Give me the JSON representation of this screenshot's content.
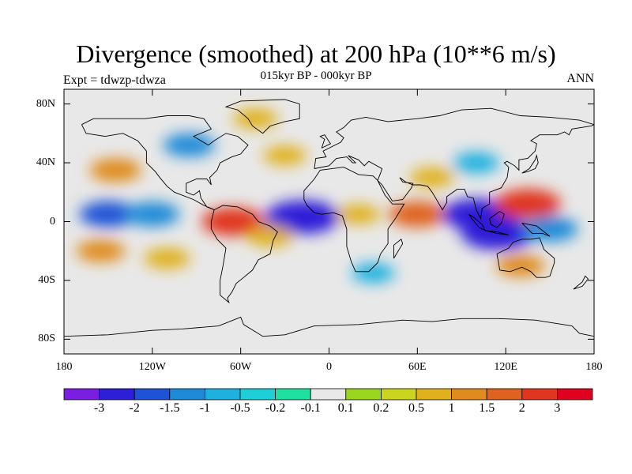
{
  "header": {
    "title": "Divergence (smoothed) at 200 hPa (10**6 m/s)",
    "subtitle": "015kyr BP - 000kyr BP",
    "left_label": "Expt = tdwzp-tdwza",
    "right_label": "ANN"
  },
  "axes": {
    "y_ticks": [
      "80N",
      "40N",
      "0",
      "40S",
      "80S"
    ],
    "x_ticks": [
      "180",
      "120W",
      "60W",
      "0",
      "60E",
      "120E",
      "180"
    ]
  },
  "colorbar": {
    "labels": [
      "-3",
      "-2",
      "-1.5",
      "-1",
      "-0.5",
      "-0.2",
      "-0.1",
      "0.1",
      "0.2",
      "0.5",
      "1",
      "1.5",
      "2",
      "3"
    ],
    "colors": [
      "#7a1fe0",
      "#2d1fd8",
      "#1f52d6",
      "#1f8ad8",
      "#1fb0e0",
      "#1fcfd8",
      "#1fe0a0",
      "#e8e8e8",
      "#9ad61f",
      "#cdd41f",
      "#e0b01f",
      "#e08a1f",
      "#e0621f",
      "#e0361f",
      "#e0001f"
    ]
  },
  "chart_data": {
    "type": "heatmap",
    "title": "Divergence (smoothed) at 200 hPa (10**6 m/s)",
    "subtitle": "015kyr BP - 000kyr BP",
    "xlim": [
      -180,
      180
    ],
    "ylim": [
      -90,
      90
    ],
    "levels": [
      -3,
      -2,
      -1.5,
      -1,
      -0.5,
      -0.2,
      -0.1,
      0.1,
      0.2,
      0.5,
      1,
      1.5,
      2,
      3
    ],
    "features": [
      {
        "lon": -145,
        "lat": 35,
        "value": 1.2
      },
      {
        "lon": -150,
        "lat": 5,
        "value": -1.6
      },
      {
        "lon": -120,
        "lat": 5,
        "value": -1.4
      },
      {
        "lon": -95,
        "lat": 52,
        "value": -1.2
      },
      {
        "lon": -65,
        "lat": 0,
        "value": 2.0
      },
      {
        "lon": -18,
        "lat": 3,
        "value": -2.8
      },
      {
        "lon": -40,
        "lat": -10,
        "value": 0.8
      },
      {
        "lon": 20,
        "lat": 5,
        "value": 0.6
      },
      {
        "lon": 60,
        "lat": 5,
        "value": 1.6
      },
      {
        "lon": 100,
        "lat": 5,
        "value": -2.4
      },
      {
        "lon": 115,
        "lat": -8,
        "value": -2.8
      },
      {
        "lon": 135,
        "lat": 12,
        "value": 2.2
      },
      {
        "lon": 150,
        "lat": -5,
        "value": -1.5
      },
      {
        "lon": 130,
        "lat": -30,
        "value": 1.0
      },
      {
        "lon": -155,
        "lat": -20,
        "value": 1.0
      },
      {
        "lon": 100,
        "lat": 40,
        "value": -0.8
      },
      {
        "lon": 70,
        "lat": 30,
        "value": 0.7
      },
      {
        "lon": -30,
        "lat": 45,
        "value": 0.6
      },
      {
        "lon": -110,
        "lat": -25,
        "value": 0.8
      },
      {
        "lon": 30,
        "lat": -35,
        "value": -0.6
      },
      {
        "lon": -50,
        "lat": 70,
        "value": 0.7
      }
    ]
  }
}
